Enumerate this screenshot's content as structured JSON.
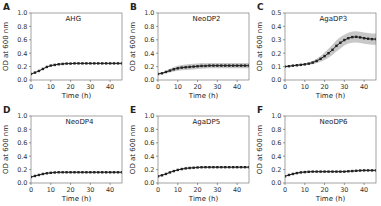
{
  "chart_data": [
    {
      "type": "line",
      "title": "AHG",
      "annotations": [
        "A"
      ],
      "x_label": "Time (h)",
      "y_label": "OD at 600 nm",
      "x": [
        0,
        2,
        4,
        6,
        8,
        10,
        12,
        14,
        16,
        18,
        20,
        22,
        24,
        26,
        28,
        30,
        32,
        34,
        36,
        38,
        40,
        42,
        44,
        46
      ],
      "xlim": [
        0,
        46
      ],
      "xticks": [
        0,
        10,
        20,
        30,
        40
      ],
      "ylim": [
        0,
        1.0
      ],
      "yticks": [
        {
          "value": 0.0,
          "label": "0.0"
        },
        0.2,
        0.4,
        0.6,
        0.8,
        {
          "value": 1.0,
          "label": "1.0"
        }
      ],
      "series": [
        {
          "color": "#222222",
          "marker": "square",
          "values": [
            0.09,
            0.11,
            0.135,
            0.165,
            0.195,
            0.215,
            0.225,
            0.235,
            0.24,
            0.245,
            0.245,
            0.248,
            0.248,
            0.248,
            0.248,
            0.248,
            0.248,
            0.248,
            0.248,
            0.248,
            0.248,
            0.248,
            0.248,
            0.248
          ],
          "errors": [
            0.004,
            0.005,
            0.006,
            0.007,
            0.008,
            0.007,
            0.006,
            0.006,
            0.005,
            0.005,
            0.005,
            0.005,
            0.005,
            0.005,
            0.005,
            0.005,
            0.005,
            0.005,
            0.005,
            0.005,
            0.005,
            0.005,
            0.005,
            0.005
          ]
        }
      ]
    },
    {
      "type": "line",
      "title": "NeoDP2",
      "annotations": [
        "B"
      ],
      "x_label": "Time (h)",
      "y_label": "OD at 600 nm",
      "x": [
        0,
        2,
        4,
        6,
        8,
        10,
        12,
        14,
        16,
        18,
        20,
        22,
        24,
        26,
        28,
        30,
        32,
        34,
        36,
        38,
        40,
        42,
        44,
        46
      ],
      "xlim": [
        0,
        46
      ],
      "xticks": [
        0,
        10,
        20,
        30,
        40
      ],
      "ylim": [
        0,
        1.0
      ],
      "yticks": [
        {
          "value": 0.0,
          "label": "0.0"
        },
        0.2,
        0.4,
        0.6,
        0.8,
        {
          "value": 1.0,
          "label": "1.0"
        }
      ],
      "series": [
        {
          "color": "#222222",
          "marker": "square",
          "values": [
            0.09,
            0.1,
            0.12,
            0.14,
            0.16,
            0.175,
            0.185,
            0.19,
            0.195,
            0.2,
            0.205,
            0.21,
            0.21,
            0.215,
            0.215,
            0.215,
            0.215,
            0.215,
            0.215,
            0.215,
            0.215,
            0.215,
            0.215,
            0.215
          ],
          "errors": [
            0.005,
            0.01,
            0.018,
            0.028,
            0.033,
            0.038,
            0.04,
            0.042,
            0.042,
            0.042,
            0.042,
            0.042,
            0.04,
            0.04,
            0.04,
            0.04,
            0.04,
            0.04,
            0.04,
            0.04,
            0.04,
            0.04,
            0.04,
            0.04
          ]
        }
      ]
    },
    {
      "type": "line",
      "title": "AgaDP3",
      "annotations": [
        "C"
      ],
      "x_label": "Time (h)",
      "y_label": "OD at 600 nm",
      "x": [
        0,
        2,
        4,
        6,
        8,
        10,
        12,
        14,
        16,
        18,
        20,
        22,
        24,
        26,
        28,
        30,
        32,
        34,
        36,
        38,
        40,
        42,
        44,
        46
      ],
      "xlim": [
        0,
        46
      ],
      "xticks": [
        0,
        10,
        20,
        30,
        40
      ],
      "ylim": [
        0,
        0.5
      ],
      "yticks": [
        {
          "value": 0.0,
          "label": "0.0"
        },
        0.1,
        0.2,
        0.3,
        0.4,
        0.5
      ],
      "series": [
        {
          "color": "#222222",
          "marker": "square",
          "values": [
            0.1,
            0.103,
            0.107,
            0.11,
            0.113,
            0.117,
            0.122,
            0.13,
            0.142,
            0.158,
            0.178,
            0.2,
            0.225,
            0.255,
            0.278,
            0.298,
            0.312,
            0.32,
            0.322,
            0.318,
            0.312,
            0.308,
            0.305,
            0.305
          ],
          "errors": [
            0.004,
            0.004,
            0.005,
            0.005,
            0.006,
            0.007,
            0.009,
            0.012,
            0.016,
            0.022,
            0.028,
            0.034,
            0.038,
            0.042,
            0.042,
            0.04,
            0.04,
            0.042,
            0.042,
            0.042,
            0.042,
            0.042,
            0.042,
            0.042
          ]
        }
      ]
    },
    {
      "type": "line",
      "title": "NeoDP4",
      "annotations": [
        "D"
      ],
      "x_label": "Time (h)",
      "y_label": "OD at 600 nm",
      "x": [
        0,
        2,
        4,
        6,
        8,
        10,
        12,
        14,
        16,
        18,
        20,
        22,
        24,
        26,
        28,
        30,
        32,
        34,
        36,
        38,
        40,
        42,
        44,
        46
      ],
      "xlim": [
        0,
        46
      ],
      "xticks": [
        0,
        10,
        20,
        30,
        40
      ],
      "ylim": [
        0,
        1.0
      ],
      "yticks": [
        {
          "value": 0.0,
          "label": "0.0"
        },
        0.2,
        0.4,
        0.6,
        0.8,
        {
          "value": 1.0,
          "label": "1.0"
        }
      ],
      "series": [
        {
          "color": "#222222",
          "marker": "square",
          "values": [
            0.09,
            0.105,
            0.12,
            0.135,
            0.145,
            0.152,
            0.157,
            0.16,
            0.16,
            0.16,
            0.16,
            0.16,
            0.16,
            0.16,
            0.16,
            0.16,
            0.16,
            0.16,
            0.16,
            0.16,
            0.16,
            0.16,
            0.16,
            0.16
          ],
          "errors": [
            0.004,
            0.006,
            0.007,
            0.008,
            0.008,
            0.008,
            0.008,
            0.008,
            0.008,
            0.008,
            0.008,
            0.008,
            0.008,
            0.008,
            0.008,
            0.008,
            0.008,
            0.008,
            0.008,
            0.008,
            0.008,
            0.008,
            0.008,
            0.008
          ]
        }
      ]
    },
    {
      "type": "line",
      "title": "AgaDP5",
      "annotations": [
        "E"
      ],
      "x_label": "Time (h)",
      "y_label": "OD at 600 nm",
      "x": [
        0,
        2,
        4,
        6,
        8,
        10,
        12,
        14,
        16,
        18,
        20,
        22,
        24,
        26,
        28,
        30,
        32,
        34,
        36,
        38,
        40,
        42,
        44,
        46
      ],
      "xlim": [
        0,
        46
      ],
      "xticks": [
        0,
        10,
        20,
        30,
        40
      ],
      "ylim": [
        0,
        1.0
      ],
      "yticks": [
        {
          "value": 0.0,
          "label": "0.0"
        },
        0.2,
        0.4,
        0.6,
        0.8,
        {
          "value": 1.0,
          "label": "1.0"
        }
      ],
      "series": [
        {
          "color": "#222222",
          "marker": "square",
          "values": [
            0.1,
            0.115,
            0.135,
            0.158,
            0.178,
            0.195,
            0.208,
            0.218,
            0.224,
            0.228,
            0.232,
            0.235,
            0.236,
            0.236,
            0.236,
            0.236,
            0.236,
            0.236,
            0.236,
            0.236,
            0.236,
            0.236,
            0.236,
            0.236
          ],
          "errors": [
            0.004,
            0.005,
            0.007,
            0.008,
            0.008,
            0.008,
            0.008,
            0.008,
            0.008,
            0.008,
            0.008,
            0.008,
            0.008,
            0.008,
            0.008,
            0.008,
            0.008,
            0.008,
            0.008,
            0.008,
            0.008,
            0.008,
            0.008,
            0.008
          ]
        }
      ]
    },
    {
      "type": "line",
      "title": "NeoDP6",
      "annotations": [
        "F"
      ],
      "x_label": "Time (h)",
      "y_label": "OD at 600 nm",
      "x": [
        0,
        2,
        4,
        6,
        8,
        10,
        12,
        14,
        16,
        18,
        20,
        22,
        24,
        26,
        28,
        30,
        32,
        34,
        36,
        38,
        40,
        42,
        44,
        46
      ],
      "xlim": [
        0,
        46
      ],
      "xticks": [
        0,
        10,
        20,
        30,
        40
      ],
      "ylim": [
        0,
        1.0
      ],
      "yticks": [
        {
          "value": 0.0,
          "label": "0.0"
        },
        0.2,
        0.4,
        0.6,
        0.8,
        {
          "value": 1.0,
          "label": "1.0"
        }
      ],
      "series": [
        {
          "color": "#222222",
          "marker": "square",
          "values": [
            0.1,
            0.12,
            0.135,
            0.148,
            0.158,
            0.163,
            0.167,
            0.17,
            0.17,
            0.17,
            0.17,
            0.17,
            0.17,
            0.17,
            0.17,
            0.17,
            0.175,
            0.178,
            0.182,
            0.186,
            0.188,
            0.188,
            0.188,
            0.188
          ],
          "errors": [
            0.005,
            0.007,
            0.009,
            0.01,
            0.01,
            0.01,
            0.01,
            0.01,
            0.01,
            0.01,
            0.01,
            0.01,
            0.01,
            0.01,
            0.01,
            0.01,
            0.01,
            0.01,
            0.01,
            0.01,
            0.01,
            0.01,
            0.01,
            0.01
          ]
        }
      ]
    }
  ]
}
